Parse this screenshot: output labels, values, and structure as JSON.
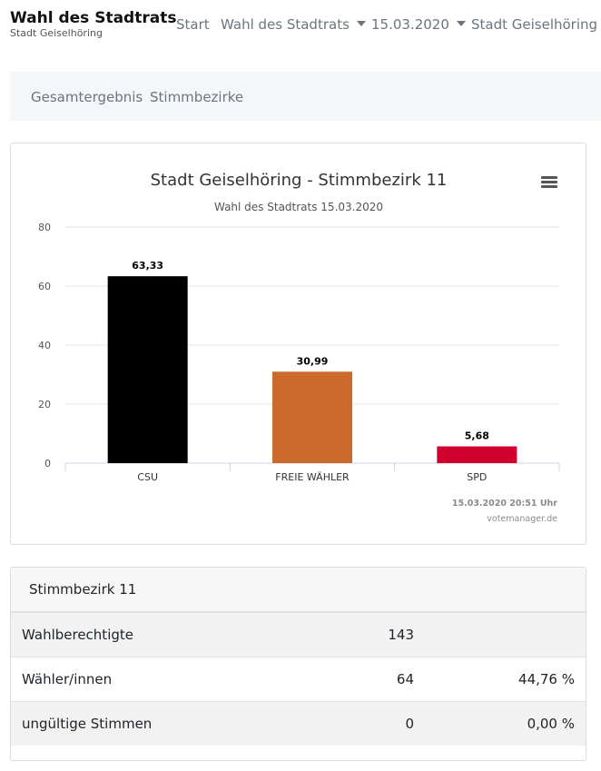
{
  "brand": {
    "title": "Wahl des Stadtrats",
    "subtitle": "Stadt Geiselhöring"
  },
  "nav": {
    "start": "Start",
    "election": "Wahl des Stadtrats",
    "date": "15.03.2020",
    "area": "Stadt Geiselhöring"
  },
  "subnav": {
    "total": "Gesamtergebnis",
    "districts": "Stimmbezirke"
  },
  "chart_data": {
    "type": "bar",
    "title": "Stadt Geiselhöring - Stimmbezirk 11",
    "subtitle": "Wahl des Stadtrats 15.03.2020",
    "categories": [
      "CSU",
      "FREIE WÄHLER",
      "SPD"
    ],
    "values": [
      63.33,
      30.99,
      5.68
    ],
    "data_labels": [
      "63,33",
      "30,99",
      "5,68"
    ],
    "colors": [
      "#000000",
      "#cc6a2e",
      "#d1012f"
    ],
    "ylim": [
      0,
      80
    ],
    "yticks": [
      0,
      20,
      40,
      60,
      80
    ],
    "grid": true,
    "credits_time": "15.03.2020 20:51 Uhr",
    "credits_source": "votemanager.de"
  },
  "stats": {
    "header": "Stimmbezirk 11",
    "rows": [
      {
        "label": "Wahlberechtigte",
        "count": "143",
        "pct": ""
      },
      {
        "label": "Wähler/innen",
        "count": "64",
        "pct": "44,76 %"
      },
      {
        "label": "ungültige Stimmen",
        "count": "0",
        "pct": "0,00 %"
      }
    ]
  }
}
